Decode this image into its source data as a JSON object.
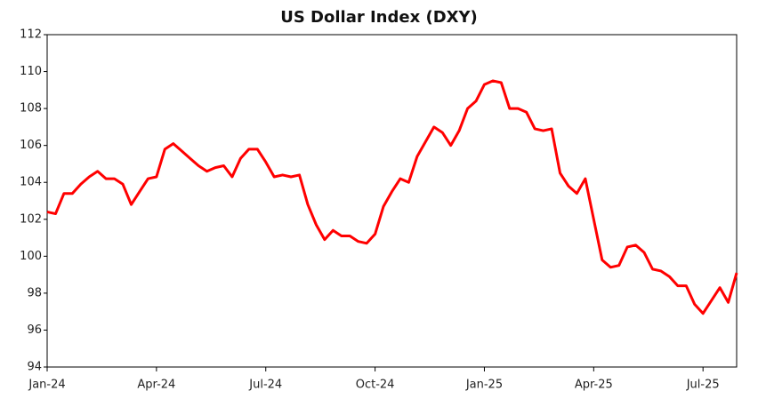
{
  "chart_data": {
    "type": "line",
    "title": "US Dollar Index (DXY)",
    "categories": [
      "Jan-24",
      null,
      null,
      null,
      null,
      null,
      null,
      null,
      null,
      null,
      null,
      null,
      null,
      "Apr-24",
      null,
      null,
      null,
      null,
      null,
      null,
      null,
      null,
      null,
      null,
      null,
      null,
      "Jul-24",
      null,
      null,
      null,
      null,
      null,
      null,
      null,
      null,
      null,
      null,
      null,
      null,
      "Oct-24",
      null,
      null,
      null,
      null,
      null,
      null,
      null,
      null,
      null,
      null,
      null,
      null,
      "Jan-25",
      null,
      null,
      null,
      null,
      null,
      null,
      null,
      null,
      null,
      null,
      null,
      null,
      "Apr-25",
      null,
      null,
      null,
      null,
      null,
      null,
      null,
      null,
      null,
      null,
      null,
      null,
      "Jul-25",
      null,
      null,
      null,
      null
    ],
    "values": [
      102.4,
      102.3,
      103.4,
      103.4,
      103.9,
      104.3,
      104.6,
      104.2,
      104.2,
      103.9,
      102.8,
      103.5,
      104.2,
      104.3,
      105.8,
      106.1,
      105.7,
      105.3,
      104.9,
      104.6,
      104.8,
      104.9,
      104.3,
      105.3,
      105.8,
      105.8,
      105.1,
      104.3,
      104.4,
      104.3,
      104.4,
      102.8,
      101.7,
      100.9,
      101.4,
      101.1,
      101.1,
      100.8,
      100.7,
      101.2,
      102.7,
      103.5,
      104.2,
      104.0,
      105.4,
      106.2,
      107.0,
      106.7,
      106.0,
      106.8,
      108.0,
      108.4,
      109.3,
      109.5,
      109.4,
      108.0,
      108.0,
      107.8,
      106.9,
      106.8,
      106.9,
      104.5,
      103.8,
      103.4,
      104.2,
      102.0,
      99.8,
      99.4,
      99.5,
      100.5,
      100.6,
      100.2,
      99.3,
      99.2,
      98.9,
      98.4,
      98.4,
      97.4,
      96.9,
      97.6,
      98.3,
      97.5,
      99.1
    ],
    "color": "#ff0000",
    "ylim": [
      94,
      112
    ],
    "yticks": [
      94,
      96,
      98,
      100,
      102,
      104,
      106,
      108,
      110,
      112
    ],
    "grid": false
  }
}
